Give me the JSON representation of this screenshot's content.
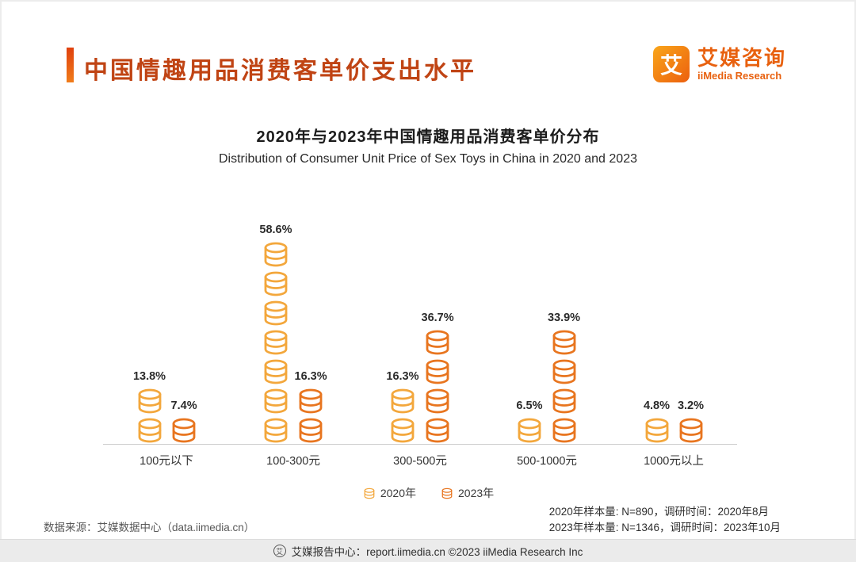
{
  "header": {
    "title": "中国情趣用品消费客单价支出水平",
    "accent_color": "#E8541A",
    "logo": {
      "icon": "aimedia-logo-icon",
      "icon_char": "艾",
      "cn": "艾媒咨询",
      "en": "iiMedia Research",
      "brand_color": "#E8610F"
    }
  },
  "chart_data": {
    "type": "pictogram-bar",
    "title": "2020年与2023年中国情趣用品消费客单价分布",
    "subtitle": "Distribution of Consumer Unit Price of Sex Toys in China in 2020 and 2023",
    "categories": [
      "100元以下",
      "100-300元",
      "300-500元",
      "500-1000元",
      "1000元以上"
    ],
    "unit": "%",
    "series": [
      {
        "name": "2020年",
        "color": "#F3A73C",
        "values": [
          13.8,
          58.6,
          16.3,
          6.5,
          4.8
        ]
      },
      {
        "name": "2023年",
        "color": "#E8751F",
        "values": [
          7.4,
          16.3,
          36.7,
          33.9,
          3.2
        ]
      }
    ],
    "ylim": [
      0,
      65
    ],
    "grid": false,
    "legend_position": "bottom",
    "icon_unit_percent": 8.4,
    "icon": "coin-stack-icon"
  },
  "footer": {
    "source": "数据来源：艾媒数据中心（data.iimedia.cn）",
    "samples": [
      "2020年样本量: N=890，调研时间：2020年8月",
      "2023年样本量: N=1346，调研时间：2023年10月"
    ],
    "report_bar": "艾媒报告中心：report.iimedia.cn ©2023 iiMedia Research Inc",
    "report_bar_icon": "aimedia-badge-icon"
  }
}
